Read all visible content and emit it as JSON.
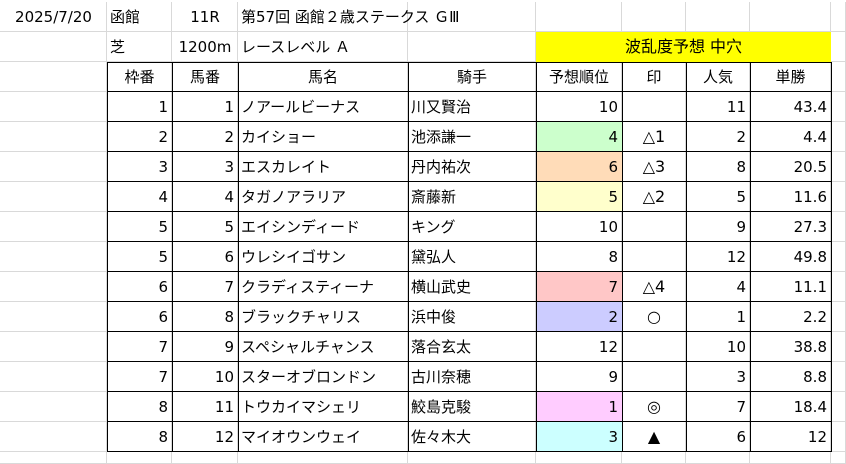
{
  "header": {
    "date": "2025/7/20",
    "venue": "函館",
    "race_no": "11R",
    "race_name": "第57回 函館２歳ステークス ＧⅢ",
    "surface": "芝",
    "distance": "1200m",
    "race_level": "レースレベル Ａ",
    "forecast_label": "波乱度予想 中穴"
  },
  "columns": [
    "枠番",
    "馬番",
    "馬名",
    "騎手",
    "予想順位",
    "印",
    "人気",
    "単勝"
  ],
  "rows": [
    {
      "waku": "1",
      "uma": "1",
      "name": "ノアールビーナス",
      "jockey": "川又賢治",
      "rank": "10",
      "mark": "",
      "pop": "11",
      "odds": "43.4"
    },
    {
      "waku": "2",
      "uma": "2",
      "name": "カイショー",
      "jockey": "池添謙一",
      "rank": "4",
      "mark": "△1",
      "pop": "2",
      "odds": "4.4"
    },
    {
      "waku": "3",
      "uma": "3",
      "name": "エスカレイト",
      "jockey": "丹内祐次",
      "rank": "6",
      "mark": "△3",
      "pop": "8",
      "odds": "20.5"
    },
    {
      "waku": "4",
      "uma": "4",
      "name": "タガノアラリア",
      "jockey": "斎藤新",
      "rank": "5",
      "mark": "△2",
      "pop": "5",
      "odds": "11.6"
    },
    {
      "waku": "5",
      "uma": "5",
      "name": "エイシンディード",
      "jockey": "キング",
      "rank": "10",
      "mark": "",
      "pop": "9",
      "odds": "27.3"
    },
    {
      "waku": "5",
      "uma": "6",
      "name": "ウレシイゴサン",
      "jockey": "黛弘人",
      "rank": "8",
      "mark": "",
      "pop": "12",
      "odds": "49.8"
    },
    {
      "waku": "6",
      "uma": "7",
      "name": "クラディスティーナ",
      "jockey": "横山武史",
      "rank": "7",
      "mark": "△4",
      "pop": "4",
      "odds": "11.1"
    },
    {
      "waku": "6",
      "uma": "8",
      "name": "ブラックチャリス",
      "jockey": "浜中俊",
      "rank": "2",
      "mark": "○",
      "pop": "1",
      "odds": "2.2"
    },
    {
      "waku": "7",
      "uma": "9",
      "name": "スペシャルチャンス",
      "jockey": "落合玄太",
      "rank": "12",
      "mark": "",
      "pop": "10",
      "odds": "38.8"
    },
    {
      "waku": "7",
      "uma": "10",
      "name": "スターオブロンドン",
      "jockey": "古川奈穂",
      "rank": "9",
      "mark": "",
      "pop": "3",
      "odds": "8.8"
    },
    {
      "waku": "8",
      "uma": "11",
      "name": "トウカイマシェリ",
      "jockey": "鮫島克駿",
      "rank": "1",
      "mark": "◎",
      "pop": "7",
      "odds": "18.4"
    },
    {
      "waku": "8",
      "uma": "12",
      "name": "マイオウンウェイ",
      "jockey": "佐々木大",
      "rank": "3",
      "mark": "▲",
      "pop": "6",
      "odds": "12"
    }
  ],
  "colors": {
    "forecast_bg": "#ffff00",
    "rank_1": "#ffccff",
    "rank_2": "#ccccff",
    "rank_3": "#ccffff",
    "rank_4": "#ccffcc",
    "rank_5": "#ffffcc",
    "rank_6": "#ffdcb8",
    "rank_7": "#ffc7c7"
  }
}
